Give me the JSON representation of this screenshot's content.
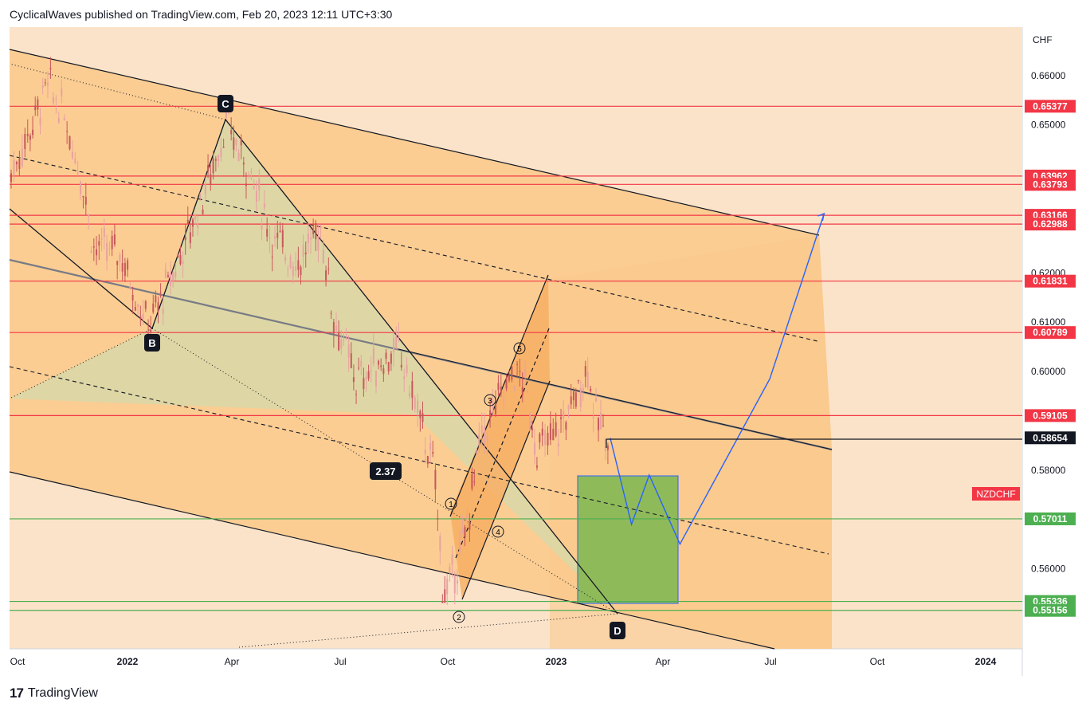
{
  "header": {
    "publish_line": "CyclicalWaves published on TradingView.com, Feb 20, 2023 12:11 UTC+3:30"
  },
  "footer": {
    "brand": "TradingView"
  },
  "colors": {
    "background": "#fbe3c9",
    "channel_fill": "#fac98a",
    "green_box": "#8fba5a",
    "resistance": "#f23645",
    "support": "#4caf50",
    "projection": "#2962ff",
    "bull_candle": "#e8a2a2",
    "bear_candle": "#c8585b",
    "current_price_bg": "#131722",
    "symbol_badge": "#f23645"
  },
  "chart_data": {
    "type": "line",
    "symbol": "NZDCHF",
    "currency": "CHF",
    "ylim": [
      0.548,
      0.6725
    ],
    "x_ticks": [
      "Oct",
      "2022",
      "Apr",
      "Jul",
      "Oct",
      "2023",
      "Apr",
      "Jul",
      "Oct",
      "2024"
    ],
    "y_ticks": [
      "0.66000",
      "0.65000",
      "0.62000",
      "0.61000",
      "0.60000",
      "0.58000",
      "0.56000"
    ],
    "resistance_levels": [
      "0.65377",
      "0.63962",
      "0.63793",
      "0.63166",
      "0.62988",
      "0.61831",
      "0.60789",
      "0.59105"
    ],
    "support_levels": [
      "0.57011",
      "0.55336",
      "0.55156"
    ],
    "current_price": "0.58654",
    "wave_labels": [
      "C",
      "B",
      "D"
    ],
    "impulse_labels": [
      "1",
      "2",
      "3",
      "4",
      "5"
    ],
    "fib_ratio": "2.37",
    "price_path": [
      {
        "date": "2021-10",
        "v": 0.64
      },
      {
        "date": "2021-10-15",
        "v": 0.648
      },
      {
        "date": "2021-11",
        "v": 0.658
      },
      {
        "date": "2021-11-15",
        "v": 0.652
      },
      {
        "date": "2021-12",
        "v": 0.638
      },
      {
        "date": "2021-12-10",
        "v": 0.625
      },
      {
        "date": "2022-01",
        "v": 0.624
      },
      {
        "date": "2022-01-25",
        "v": 0.609
      },
      {
        "date": "2022-02-15",
        "v": 0.62
      },
      {
        "date": "2022-03-10",
        "v": 0.634
      },
      {
        "date": "2022-04",
        "v": 0.65
      },
      {
        "date": "2022-04-20",
        "v": 0.641
      },
      {
        "date": "2022-05-10",
        "v": 0.627
      },
      {
        "date": "2022-06",
        "v": 0.622
      },
      {
        "date": "2022-06-20",
        "v": 0.629
      },
      {
        "date": "2022-07",
        "v": 0.611
      },
      {
        "date": "2022-07-20",
        "v": 0.598
      },
      {
        "date": "2022-08-10",
        "v": 0.602
      },
      {
        "date": "2022-08-25",
        "v": 0.604
      },
      {
        "date": "2022-09-10",
        "v": 0.592
      },
      {
        "date": "2022-09-25",
        "v": 0.578
      },
      {
        "date": "2022-10-01",
        "v": 0.557
      },
      {
        "date": "2022-10-05",
        "v": 0.555
      },
      {
        "date": "2022-10-20",
        "v": 0.566
      },
      {
        "date": "2022-11",
        "v": 0.585
      },
      {
        "date": "2022-11-15",
        "v": 0.593
      },
      {
        "date": "2022-12",
        "v": 0.6
      },
      {
        "date": "2022-12-10",
        "v": 0.597
      },
      {
        "date": "2022-12-20",
        "v": 0.584
      },
      {
        "date": "2023-01-05",
        "v": 0.587
      },
      {
        "date": "2023-01-20",
        "v": 0.594
      },
      {
        "date": "2023-02-01",
        "v": 0.601
      },
      {
        "date": "2023-02-08",
        "v": 0.59
      },
      {
        "date": "2023-02-20",
        "v": 0.5865
      }
    ],
    "projection_path": [
      {
        "date": "2023-02-20",
        "v": 0.5865
      },
      {
        "date": "2023-03-10",
        "v": 0.569
      },
      {
        "date": "2023-03-25",
        "v": 0.579
      },
      {
        "date": "2023-04-20",
        "v": 0.565
      },
      {
        "date": "2023-07-05",
        "v": 0.5985
      },
      {
        "date": "2023-08-20",
        "v": 0.632
      }
    ]
  }
}
